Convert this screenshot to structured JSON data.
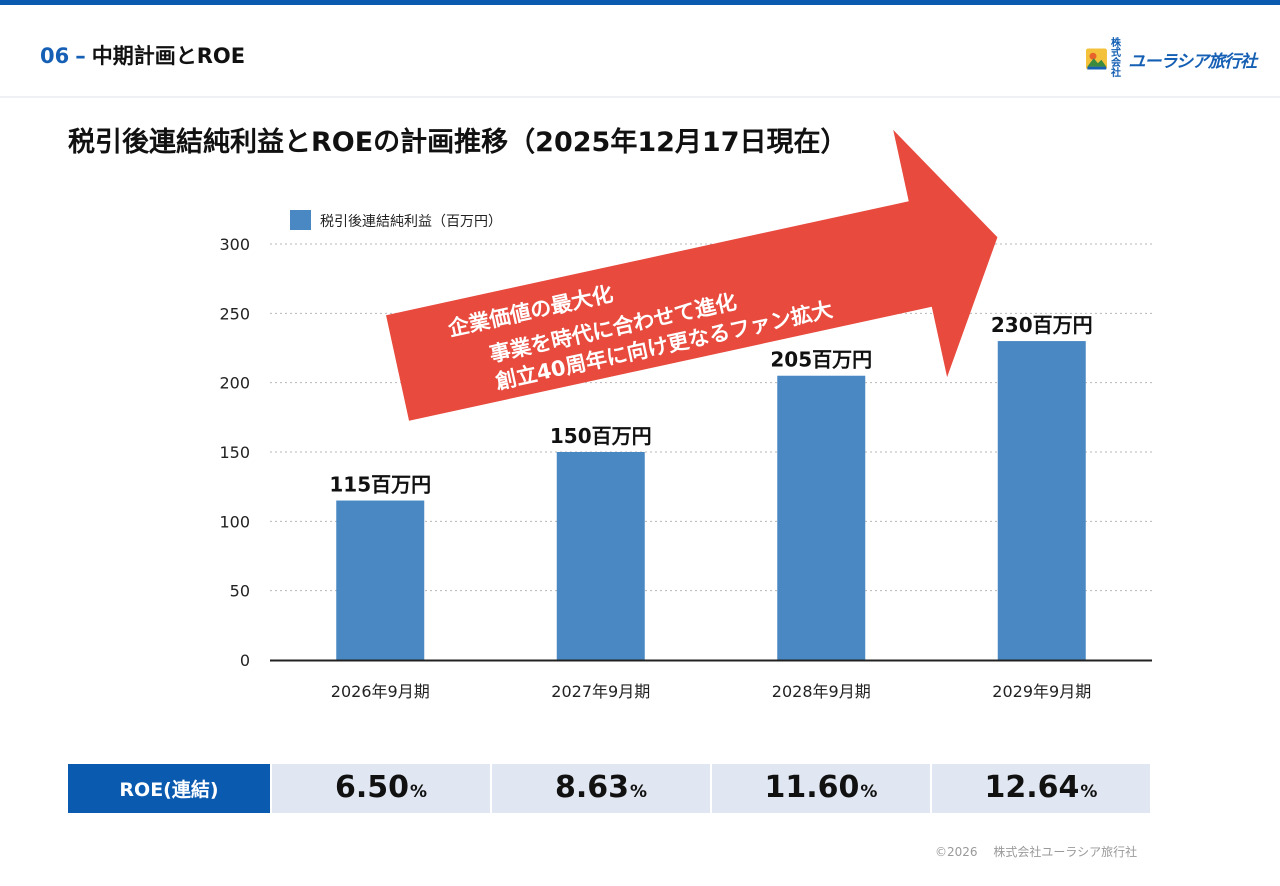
{
  "header": {
    "section_number": "06",
    "section_title": "中期計画とROE",
    "logo_prefix": "株式会社",
    "logo_text": "ユーラシア旅行社"
  },
  "title": "税引後連結純利益とROEの計画推移（2025年12月17日現在）",
  "chart_data": {
    "type": "bar",
    "categories": [
      "2026年9月期",
      "2027年9月期",
      "2028年9月期",
      "2029年9月期"
    ],
    "series": [
      {
        "name": "税引後連結純利益（百万円）",
        "values": [
          115,
          150,
          205,
          230
        ]
      }
    ],
    "data_labels": [
      "115百万円",
      "150百万円",
      "205百万円",
      "230百万円"
    ],
    "yticks": [
      "0",
      "50",
      "100",
      "150",
      "200",
      "250",
      "300"
    ],
    "ylim": [
      0,
      300
    ],
    "grid": true,
    "legend_position": "top-left",
    "bar_color": "#4a88c4",
    "annotation": {
      "color": "#e84a3e",
      "lines": [
        "企業価値の最大化",
        "事業を時代に合わせて進化",
        "創立40周年に向け更なるファン拡大"
      ]
    }
  },
  "roe_table": {
    "header": "ROE(連結)",
    "values": [
      "6.50",
      "8.63",
      "11.60",
      "12.64"
    ],
    "unit": "%"
  },
  "footer": {
    "copyright": "©2026　 株式会社ユーラシア旅行社"
  },
  "colors": {
    "accent": "#0a5ab0",
    "table_cell": "#e1e7f2"
  }
}
